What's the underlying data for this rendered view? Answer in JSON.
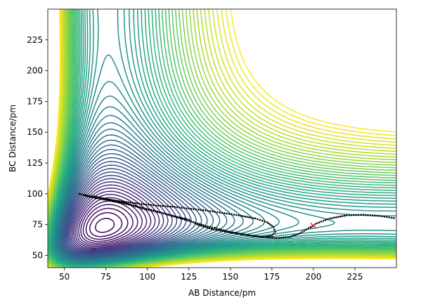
{
  "chart_data": {
    "type": "contour",
    "title": "",
    "xlabel": "AB Distance/pm",
    "ylabel": "BC Distance/pm",
    "xlim": [
      40,
      250
    ],
    "ylim": [
      40,
      250
    ],
    "x_ticks": [
      50,
      75,
      100,
      125,
      150,
      175,
      200,
      225
    ],
    "y_ticks": [
      50,
      75,
      100,
      125,
      150,
      175,
      200,
      225
    ],
    "x_tick_labels": [
      "50",
      "75",
      "100",
      "125",
      "150",
      "175",
      "200",
      "225"
    ],
    "y_tick_labels": [
      "50",
      "75",
      "100",
      "125",
      "150",
      "175",
      "200",
      "225"
    ],
    "grid": false,
    "legend": "none",
    "colormap": "viridis",
    "contour_levels": 60,
    "surface_asymptote_pm": 74,
    "trajectory": {
      "style": "black dotted",
      "points": [
        [
          59,
          100
        ],
        [
          64,
          98
        ],
        [
          70,
          96.5
        ],
        [
          78,
          95
        ],
        [
          86,
          93.5
        ],
        [
          95,
          92
        ],
        [
          105,
          90.5
        ],
        [
          115,
          89.5
        ],
        [
          125,
          88
        ],
        [
          135,
          86.5
        ],
        [
          145,
          84.5
        ],
        [
          155,
          82.5
        ],
        [
          165,
          80
        ],
        [
          172,
          77
        ],
        [
          176,
          73
        ],
        [
          177,
          69
        ],
        [
          175,
          66
        ],
        [
          170,
          65
        ],
        [
          162,
          66
        ],
        [
          152,
          68
        ],
        [
          140,
          71
        ],
        [
          130,
          75
        ],
        [
          125,
          79
        ],
        [
          110,
          84
        ],
        [
          97,
          88
        ],
        [
          85,
          93
        ],
        [
          75,
          96
        ],
        [
          68,
          98
        ],
        [
          62,
          99
        ],
        [
          66,
          97.5
        ],
        [
          75,
          95
        ],
        [
          90,
          91
        ],
        [
          105,
          86
        ],
        [
          120,
          80
        ],
        [
          135,
          74
        ],
        [
          150,
          69
        ],
        [
          165,
          65.5
        ],
        [
          178,
          64
        ],
        [
          186,
          65
        ],
        [
          192,
          68
        ],
        [
          197,
          72
        ],
        [
          202,
          76
        ],
        [
          210,
          80
        ],
        [
          220,
          82.5
        ],
        [
          230,
          83
        ],
        [
          240,
          82
        ],
        [
          250,
          80
        ]
      ]
    },
    "marker": {
      "x": 200,
      "y": 74,
      "symbol": "x",
      "color": "#d62728"
    }
  }
}
